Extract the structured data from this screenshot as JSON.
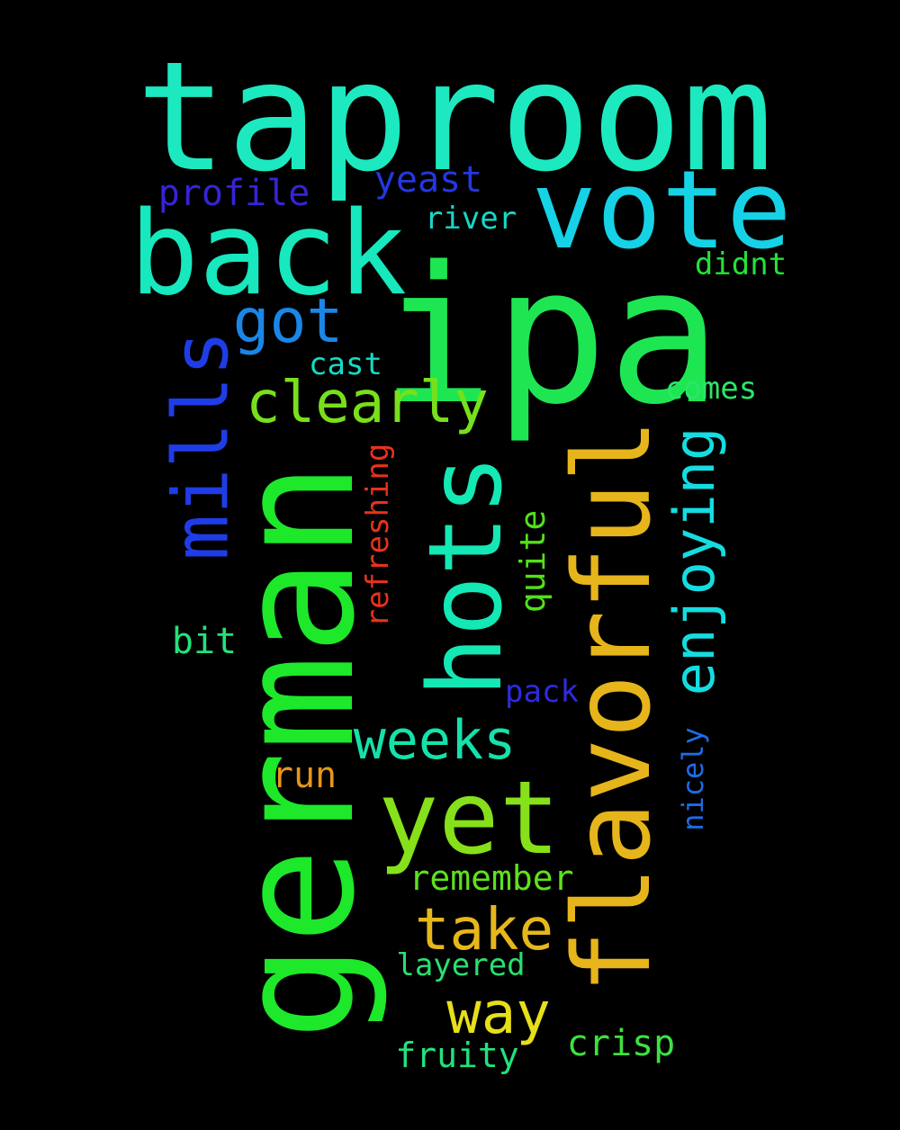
{
  "words": [
    {
      "text": "taproom",
      "color": "#1de9c0"
    },
    {
      "text": "vote",
      "color": "#16d2e6"
    },
    {
      "text": "back",
      "color": "#17e8be"
    },
    {
      "text": "ipa",
      "color": "#1ee652"
    },
    {
      "text": "german",
      "color": "#1de82a"
    },
    {
      "text": "flavorful",
      "color": "#e6b51b"
    },
    {
      "text": "hots",
      "color": "#14e8b4"
    },
    {
      "text": "mills",
      "color": "#1f3de6"
    },
    {
      "text": "yet",
      "color": "#86e01a"
    },
    {
      "text": "enjoying",
      "color": "#15dce0"
    },
    {
      "text": "clearly",
      "color": "#78e01b"
    },
    {
      "text": "got",
      "color": "#1b86e6"
    },
    {
      "text": "weeks",
      "color": "#14e2aa"
    },
    {
      "text": "take",
      "color": "#e6b71b"
    },
    {
      "text": "way",
      "color": "#e6df1a"
    },
    {
      "text": "profile",
      "color": "#3524d8"
    },
    {
      "text": "yeast",
      "color": "#2338e0"
    },
    {
      "text": "river",
      "color": "#16d8c8"
    },
    {
      "text": "didnt",
      "color": "#22e23a"
    },
    {
      "text": "cast",
      "color": "#14dcc4"
    },
    {
      "text": "comes",
      "color": "#2be66a"
    },
    {
      "text": "refreshing",
      "color": "#e8321c"
    },
    {
      "text": "quite",
      "color": "#52e01a"
    },
    {
      "text": "bit",
      "color": "#22e27a"
    },
    {
      "text": "pack",
      "color": "#2f2ae0"
    },
    {
      "text": "nicely",
      "color": "#1e6ce6"
    },
    {
      "text": "run",
      "color": "#e6961a"
    },
    {
      "text": "remember",
      "color": "#5ee21c"
    },
    {
      "text": "layered",
      "color": "#28e070"
    },
    {
      "text": "crisp",
      "color": "#3ee040"
    },
    {
      "text": "fruity",
      "color": "#22e27e"
    }
  ]
}
